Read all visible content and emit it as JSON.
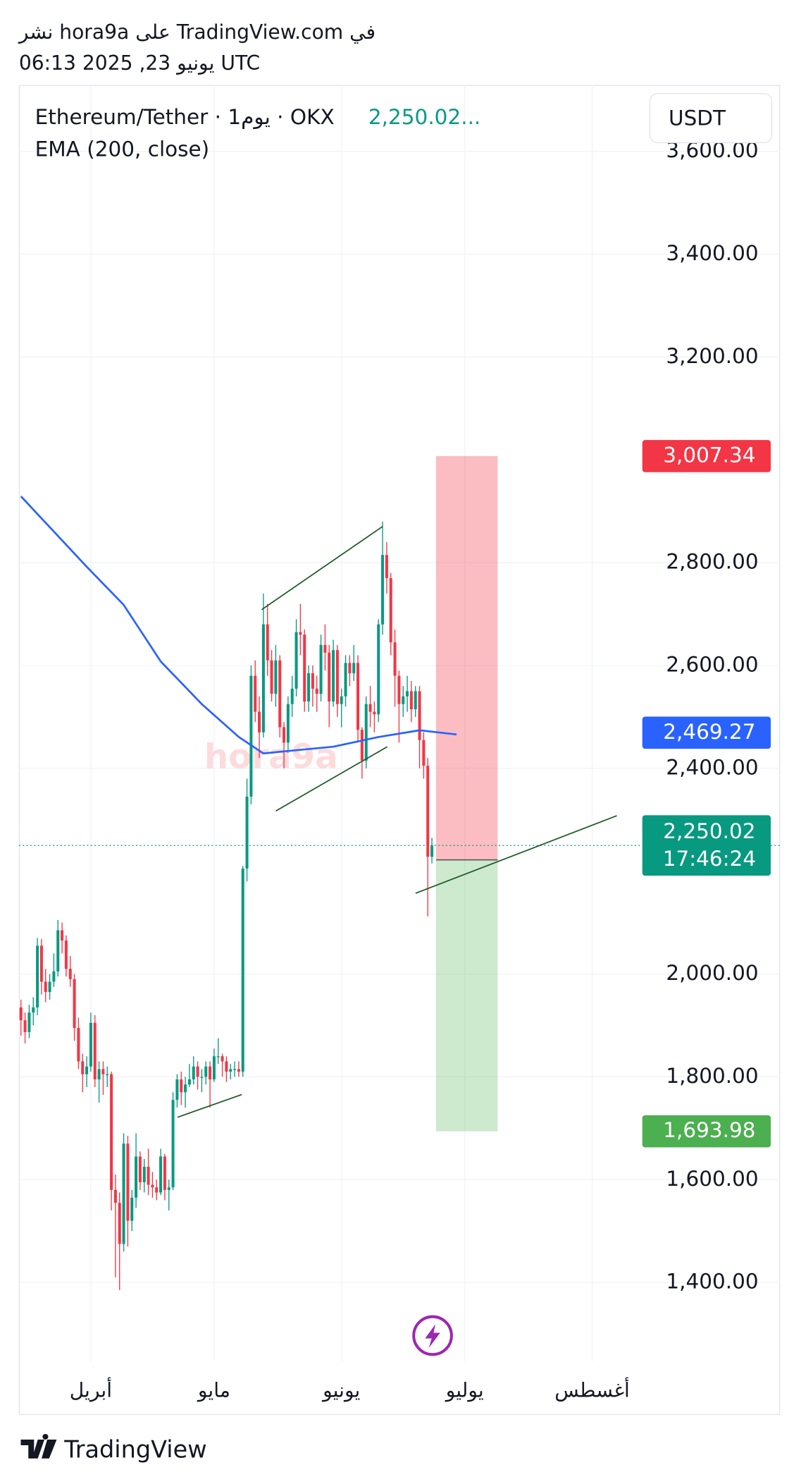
{
  "header": {
    "line1": "نشر hora9a على TradingView.com في",
    "line2": "يونيو 23, 2025 06:13 UTC"
  },
  "chart_data": {
    "type": "candlestick",
    "symbol": "Ethereum/Tether · 1يوم · OKX",
    "price_text": "2,250.02...",
    "currency": "USDT",
    "up_color": "#089981",
    "down_color": "#f23645",
    "grid": true,
    "xlim": [
      -0.5,
      151.2
    ],
    "ylim": [
      1247,
      3729
    ],
    "xticks": [
      {
        "value": 17,
        "label": "أبريل"
      },
      {
        "value": 47,
        "label": "مايو"
      },
      {
        "value": 78,
        "label": "يونيو"
      },
      {
        "value": 108,
        "label": "يوليو"
      },
      {
        "value": 139,
        "label": "أغسطس"
      }
    ],
    "yticks": [
      {
        "value": 1400,
        "label": "1,400.00"
      },
      {
        "value": 1600,
        "label": "1,600.00"
      },
      {
        "value": 1800,
        "label": "1,800.00"
      },
      {
        "value": 2000,
        "label": "2,000.00"
      },
      {
        "value": 2400,
        "label": "2,400.00"
      },
      {
        "value": 2600,
        "label": "2,600.00"
      },
      {
        "value": 2800,
        "label": "2,800.00"
      },
      {
        "value": 3200,
        "label": "3,200.00"
      },
      {
        "value": 3400,
        "label": "3,400.00"
      },
      {
        "value": 3600,
        "label": "3,600.00"
      }
    ],
    "candles": [
      [
        1935,
        1950,
        1880,
        1910
      ],
      [
        1910,
        1925,
        1865,
        1887
      ],
      [
        1887,
        1940,
        1875,
        1925
      ],
      [
        1925,
        1955,
        1900,
        1935
      ],
      [
        1935,
        2070,
        1920,
        2055
      ],
      [
        2055,
        2068,
        1960,
        1985
      ],
      [
        1985,
        2010,
        1945,
        1965
      ],
      [
        1965,
        2000,
        1950,
        1985
      ],
      [
        1985,
        2040,
        1975,
        2005
      ],
      [
        2005,
        2105,
        1995,
        2085
      ],
      [
        2085,
        2100,
        2040,
        2065
      ],
      [
        2065,
        2075,
        1995,
        2010
      ],
      [
        2010,
        2035,
        1975,
        1990
      ],
      [
        1990,
        2000,
        1870,
        1895
      ],
      [
        1895,
        1915,
        1815,
        1830
      ],
      [
        1830,
        1845,
        1770,
        1805
      ],
      [
        1805,
        1840,
        1780,
        1820
      ],
      [
        1820,
        1925,
        1810,
        1905
      ],
      [
        1905,
        1920,
        1780,
        1795
      ],
      [
        1795,
        1830,
        1750,
        1815
      ],
      [
        1815,
        1830,
        1765,
        1805
      ],
      [
        1805,
        1820,
        1780,
        1805
      ],
      [
        1805,
        1810,
        1540,
        1580
      ],
      [
        1580,
        1610,
        1410,
        1555
      ],
      [
        1555,
        1575,
        1385,
        1475
      ],
      [
        1475,
        1690,
        1460,
        1670
      ],
      [
        1670,
        1685,
        1470,
        1520
      ],
      [
        1520,
        1580,
        1500,
        1565
      ],
      [
        1565,
        1690,
        1545,
        1645
      ],
      [
        1645,
        1655,
        1580,
        1595
      ],
      [
        1595,
        1640,
        1575,
        1625
      ],
      [
        1625,
        1660,
        1570,
        1590
      ],
      [
        1590,
        1615,
        1565,
        1585
      ],
      [
        1585,
        1600,
        1560,
        1575
      ],
      [
        1575,
        1660,
        1570,
        1645
      ],
      [
        1645,
        1650,
        1560,
        1580
      ],
      [
        1580,
        1600,
        1540,
        1585
      ],
      [
        1585,
        1770,
        1580,
        1755
      ],
      [
        1755,
        1805,
        1740,
        1795
      ],
      [
        1795,
        1810,
        1745,
        1770
      ],
      [
        1770,
        1800,
        1740,
        1785
      ],
      [
        1785,
        1825,
        1780,
        1795
      ],
      [
        1795,
        1840,
        1785,
        1820
      ],
      [
        1820,
        1830,
        1775,
        1800
      ],
      [
        1800,
        1815,
        1770,
        1800
      ],
      [
        1800,
        1830,
        1785,
        1820
      ],
      [
        1820,
        1830,
        1740,
        1795
      ],
      [
        1795,
        1855,
        1790,
        1840
      ],
      [
        1840,
        1875,
        1825,
        1840
      ],
      [
        1840,
        1845,
        1800,
        1830
      ],
      [
        1830,
        1840,
        1790,
        1810
      ],
      [
        1810,
        1825,
        1795,
        1815
      ],
      [
        1815,
        1830,
        1800,
        1815
      ],
      [
        1815,
        1830,
        1800,
        1810
      ],
      [
        1810,
        2210,
        1800,
        2205
      ],
      [
        2205,
        2380,
        2180,
        2345
      ],
      [
        2345,
        2600,
        2330,
        2580
      ],
      [
        2580,
        2610,
        2490,
        2510
      ],
      [
        2510,
        2540,
        2420,
        2470
      ],
      [
        2470,
        2740,
        2460,
        2680
      ],
      [
        2680,
        2720,
        2580,
        2610
      ],
      [
        2610,
        2630,
        2530,
        2545
      ],
      [
        2545,
        2640,
        2520,
        2610
      ],
      [
        2610,
        2620,
        2460,
        2480
      ],
      [
        2480,
        2490,
        2400,
        2450
      ],
      [
        2450,
        2540,
        2430,
        2525
      ],
      [
        2525,
        2580,
        2500,
        2555
      ],
      [
        2555,
        2690,
        2540,
        2665
      ],
      [
        2665,
        2720,
        2620,
        2660
      ],
      [
        2660,
        2670,
        2510,
        2530
      ],
      [
        2530,
        2600,
        2510,
        2585
      ],
      [
        2585,
        2600,
        2520,
        2555
      ],
      [
        2555,
        2580,
        2510,
        2545
      ],
      [
        2545,
        2660,
        2530,
        2640
      ],
      [
        2640,
        2680,
        2590,
        2625
      ],
      [
        2625,
        2640,
        2480,
        2530
      ],
      [
        2530,
        2650,
        2520,
        2630
      ],
      [
        2630,
        2640,
        2500,
        2525
      ],
      [
        2525,
        2555,
        2480,
        2540
      ],
      [
        2540,
        2620,
        2520,
        2605
      ],
      [
        2605,
        2620,
        2560,
        2585
      ],
      [
        2585,
        2640,
        2570,
        2605
      ],
      [
        2605,
        2620,
        2450,
        2475
      ],
      [
        2475,
        2480,
        2380,
        2415
      ],
      [
        2415,
        2540,
        2400,
        2525
      ],
      [
        2525,
        2560,
        2480,
        2510
      ],
      [
        2510,
        2530,
        2470,
        2505
      ],
      [
        2505,
        2690,
        2490,
        2680
      ],
      [
        2680,
        2880,
        2660,
        2815
      ],
      [
        2815,
        2840,
        2740,
        2770
      ],
      [
        2770,
        2780,
        2620,
        2645
      ],
      [
        2645,
        2670,
        2520,
        2580
      ],
      [
        2580,
        2590,
        2450,
        2525
      ],
      [
        2525,
        2560,
        2500,
        2540
      ],
      [
        2540,
        2580,
        2510,
        2550
      ],
      [
        2550,
        2570,
        2490,
        2515
      ],
      [
        2515,
        2560,
        2500,
        2550
      ],
      [
        2550,
        2560,
        2400,
        2455
      ],
      [
        2455,
        2470,
        2380,
        2405
      ],
      [
        2405,
        2420,
        2112,
        2228
      ],
      [
        2228,
        2265,
        2215,
        2250.02
      ]
    ],
    "ema": {
      "name": "EMA (200, close)",
      "color": "#2962ff",
      "x": [
        0,
        16,
        25,
        34,
        44,
        53,
        59,
        64,
        76,
        87,
        97,
        106
      ],
      "values": [
        2929,
        2792,
        2718,
        2608,
        2525,
        2461,
        2429,
        2433,
        2442,
        2461,
        2474,
        2466
      ],
      "last": {
        "value": 2469.27,
        "label": "2,469.27"
      }
    },
    "last_price": {
      "value": 2250.02,
      "label": "2,250.02"
    },
    "countdown": "17:46:24",
    "position": {
      "x": [
        101,
        116
      ],
      "entry": 2222,
      "stop": {
        "value": 3007.34,
        "label": "3,007.34"
      },
      "target": {
        "value": 1693.98,
        "label": "1,693.98"
      }
    },
    "watermark": "hora9a"
  },
  "footer": {
    "brand": "TradingView"
  }
}
